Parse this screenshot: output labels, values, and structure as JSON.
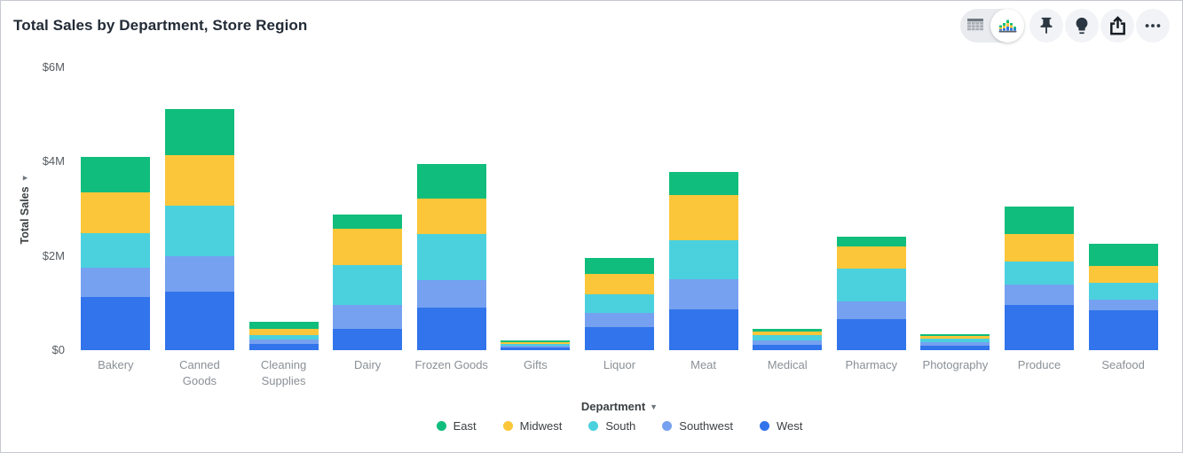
{
  "title": "Total Sales by Department, Store Region",
  "toolbar": {
    "view_toggle": {
      "options": [
        "table-view",
        "chart-view"
      ],
      "selected": "chart-view"
    },
    "buttons": [
      "pin",
      "lightbulb",
      "share",
      "more-options"
    ]
  },
  "colors": {
    "east": "#10bd7c",
    "midwest": "#fbc63a",
    "south": "#4bd1dd",
    "southwest": "#75a1f0",
    "west": "#3174eb",
    "title_text": "#222b36",
    "axis_tick_text": "#575c61",
    "category_text": "#8a9096"
  },
  "chart_data": {
    "type": "bar",
    "stacked": true,
    "title": "Total Sales by Department, Store Region",
    "xlabel": "Department",
    "ylabel": "Total Sales",
    "values_unit": "USD millions",
    "ylim": [
      0,
      6
    ],
    "grid": false,
    "legend_position": "bottom",
    "yticks": [
      {
        "label": "$0",
        "m": 0
      },
      {
        "label": "$2M",
        "m": 2
      },
      {
        "label": "$4M",
        "m": 4
      },
      {
        "label": "$6M",
        "m": 6
      }
    ],
    "categories": [
      "Bakery",
      "Canned Goods",
      "Cleaning Supplies",
      "Dairy",
      "Frozen Goods",
      "Gifts",
      "Liquor",
      "Meat",
      "Medical",
      "Pharmacy",
      "Photography",
      "Produce",
      "Seafood"
    ],
    "series": [
      {
        "name": "East",
        "color": "#10bd7c",
        "values": [
          0.75,
          0.97,
          0.15,
          0.3,
          0.73,
          0.03,
          0.34,
          0.49,
          0.06,
          0.21,
          0.04,
          0.58,
          0.47
        ]
      },
      {
        "name": "Midwest",
        "color": "#fbc63a",
        "values": [
          0.87,
          1.07,
          0.13,
          0.77,
          0.75,
          0.04,
          0.43,
          0.96,
          0.08,
          0.47,
          0.06,
          0.58,
          0.36
        ]
      },
      {
        "name": "South",
        "color": "#4bd1dd",
        "values": [
          0.73,
          1.07,
          0.09,
          0.85,
          0.98,
          0.03,
          0.4,
          0.83,
          0.11,
          0.7,
          0.08,
          0.49,
          0.36
        ]
      },
      {
        "name": "Southwest",
        "color": "#75a1f0",
        "values": [
          0.62,
          0.75,
          0.09,
          0.51,
          0.58,
          0.03,
          0.3,
          0.64,
          0.09,
          0.38,
          0.08,
          0.43,
          0.23
        ]
      },
      {
        "name": "West",
        "color": "#3174eb",
        "values": [
          1.13,
          1.24,
          0.13,
          0.45,
          0.9,
          0.06,
          0.49,
          0.87,
          0.11,
          0.66,
          0.09,
          0.96,
          0.85
        ]
      }
    ]
  }
}
